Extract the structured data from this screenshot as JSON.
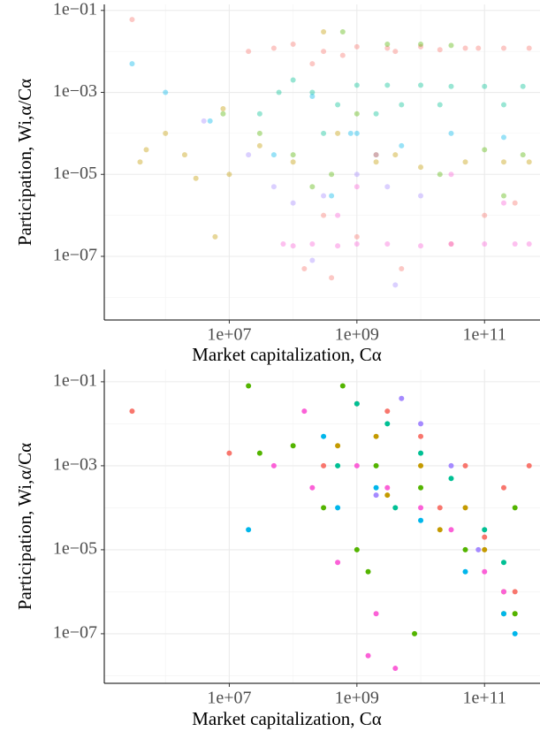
{
  "chart_data": [
    {
      "type": "scatter",
      "x_label": "Market capitalization, Cα",
      "y_label": "Participation, Wi,α/Cα",
      "log_x": true,
      "log_y": true,
      "grid": true,
      "alpha": 0.4,
      "xlim": [
        110000,
        740000000000
      ],
      "ylim": [
        2.8e-09,
        0.14
      ],
      "xticks": [
        {
          "value": 10000000,
          "label": "1e+07"
        },
        {
          "value": 1000000000,
          "label": "1e+09"
        },
        {
          "value": 100000000000,
          "label": "1e+11"
        }
      ],
      "xminor": [
        1000000,
        100000000,
        10000000000
      ],
      "yticks": [
        {
          "value": 0.1,
          "label": "1e−01"
        },
        {
          "value": 0.001,
          "label": "1e−03"
        },
        {
          "value": 1e-05,
          "label": "1e−05"
        },
        {
          "value": 1e-07,
          "label": "1e−07"
        }
      ],
      "yminor": [
        0.01,
        0.0001,
        1e-06,
        1e-08
      ],
      "series": [
        {
          "color": "#F8766D",
          "x": [
            300000.0,
            20000000.0,
            50000000.0,
            100000000.0,
            300000000.0,
            1000000000.0,
            3000000000.0,
            10000000000.0,
            50000000000.0,
            200000000000.0,
            500000000000.0,
            200000000.0,
            600000000.0,
            4000000000.0,
            20000000000.0,
            80000000000.0,
            300000000.0,
            1000000000.0,
            5000000000.0,
            30000000000.0,
            100000000000.0,
            300000000000.0,
            150000000.0,
            400000000.0
          ],
          "y": [
            0.06,
            0.01,
            0.012,
            0.015,
            0.01,
            0.013,
            0.012,
            0.013,
            0.012,
            0.012,
            0.012,
            0.005,
            0.008,
            0.01,
            0.011,
            0.012,
            1e-06,
            3e-07,
            5e-08,
            2e-07,
            1e-06,
            2e-06,
            5e-08,
            3e-08
          ]
        },
        {
          "color": "#C49A00",
          "x": [
            400000.0,
            500000.0,
            1000000.0,
            2000000.0,
            3000000.0,
            6000000.0,
            10000000.0,
            30000000.0,
            100000000.0,
            500000000.0,
            2000000000.0,
            10000000000.0,
            50000000000.0,
            200000000000.0,
            500000000000.0,
            8000000.0,
            300000000.0,
            4000000000.0
          ],
          "y": [
            2e-05,
            4e-05,
            0.0001,
            3e-05,
            8e-06,
            3e-07,
            1e-05,
            5e-05,
            2e-05,
            0.0001,
            2e-05,
            1.5e-05,
            2e-05,
            2e-05,
            2e-05,
            0.0004,
            0.03,
            3e-05
          ]
        },
        {
          "color": "#53B400",
          "x": [
            8000000.0,
            30000000.0,
            100000000.0,
            400000000.0,
            1000000000.0,
            3000000000.0,
            10000000000.0,
            30000000000.0,
            100000000000.0,
            400000000000.0,
            200000000.0,
            2000000000.0,
            20000000000.0,
            200000000000.0,
            600000000.0
          ],
          "y": [
            0.0003,
            0.0001,
            3e-05,
            1e-05,
            0.0003,
            0.015,
            0.015,
            0.014,
            4e-05,
            3e-05,
            5e-06,
            3e-05,
            1e-05,
            3e-06,
            0.03
          ]
        },
        {
          "color": "#00C094",
          "x": [
            30000000.0,
            60000000.0,
            100000000.0,
            200000000.0,
            500000000.0,
            1000000000.0,
            3000000000.0,
            10000000000.0,
            30000000000.0,
            100000000000.0,
            400000000000.0,
            300000000.0,
            2000000000.0,
            5000000000.0,
            20000000000.0,
            200000000000.0
          ],
          "y": [
            0.0003,
            0.001,
            0.002,
            0.001,
            0.0005,
            0.0015,
            0.0015,
            0.0015,
            0.0014,
            0.0014,
            0.0014,
            0.0001,
            0.0003,
            0.0005,
            0.0005,
            0.0005
          ]
        },
        {
          "color": "#00B6EB",
          "x": [
            300000.0,
            1000000.0,
            5000000.0,
            50000000.0,
            200000000.0,
            1000000000.0,
            5000000000.0,
            30000000000.0,
            200000000000.0,
            400000000.0,
            800000000.0
          ],
          "y": [
            0.005,
            0.001,
            0.0002,
            3e-05,
            0.0008,
            0.0001,
            5e-05,
            0.0001,
            8e-05,
            3e-06,
            0.0001
          ]
        },
        {
          "color": "#A58AFF",
          "x": [
            4000000.0,
            20000000.0,
            50000000.0,
            100000000.0,
            300000000.0,
            1000000000.0,
            3000000000.0,
            10000000000.0,
            4000000000.0,
            200000000.0
          ],
          "y": [
            0.0002,
            3e-05,
            5e-06,
            2e-06,
            3e-06,
            1e-05,
            5e-06,
            3e-06,
            2e-08,
            8e-08
          ]
        },
        {
          "color": "#FB61D7",
          "x": [
            70000000.0,
            100000000.0,
            200000000.0,
            500000000.0,
            1000000000.0,
            3000000000.0,
            10000000000.0,
            30000000000.0,
            100000000000.0,
            300000000000.0,
            500000000000.0,
            1000000000.0,
            500000000.0,
            2000000000.0,
            30000000000.0,
            200000000000.0
          ],
          "y": [
            2e-07,
            1.8e-07,
            2e-07,
            1.8e-07,
            2e-07,
            2e-07,
            1.8e-07,
            2e-07,
            2e-07,
            2e-07,
            2e-07,
            5e-06,
            1e-06,
            3e-05,
            1e-05,
            2e-06
          ]
        }
      ]
    },
    {
      "type": "scatter",
      "x_label": "Market capitalization, Cα",
      "y_label": "Participation, Wi,α/Cα",
      "log_x": true,
      "log_y": true,
      "grid": true,
      "alpha": 1,
      "xlim": [
        110000,
        740000000000
      ],
      "ylim": [
        6.6e-09,
        0.196
      ],
      "xticks": [
        {
          "value": 10000000,
          "label": "1e+07"
        },
        {
          "value": 1000000000,
          "label": "1e+09"
        },
        {
          "value": 100000000000,
          "label": "1e+11"
        }
      ],
      "xminor": [
        1000000,
        100000000,
        10000000000
      ],
      "yticks": [
        {
          "value": 0.1,
          "label": "1e−01"
        },
        {
          "value": 0.001,
          "label": "1e−03"
        },
        {
          "value": 1e-05,
          "label": "1e−05"
        },
        {
          "value": 1e-07,
          "label": "1e−07"
        }
      ],
      "yminor": [
        0.01,
        0.0001,
        1e-06,
        1e-08
      ],
      "series": [
        {
          "color": "#F8766D",
          "x": [
            300000.0,
            10000000.0,
            1000000000.0,
            3000000000.0,
            10000000000.0,
            50000000000.0,
            200000000000.0,
            500000000000.0,
            300000000.0,
            20000000000.0,
            100000000000.0,
            300000000000.0
          ],
          "y": [
            0.02,
            0.002,
            0.03,
            0.02,
            0.005,
            0.001,
            0.0003,
            0.001,
            0.001,
            0.0001,
            2e-05,
            1e-06
          ]
        },
        {
          "color": "#C49A00",
          "x": [
            500000000.0,
            2000000000.0,
            10000000000.0,
            50000000000.0,
            100000000000.0,
            200000000000.0,
            300000000000.0,
            3000000000.0,
            20000000000.0
          ],
          "y": [
            0.003,
            0.005,
            0.001,
            0.0001,
            1e-05,
            1e-06,
            3e-07,
            0.0002,
            3e-05
          ]
        },
        {
          "color": "#53B400",
          "x": [
            20000000.0,
            30000000.0,
            100000000.0,
            600000000.0,
            2000000000.0,
            10000000000.0,
            50000000000.0,
            200000000000.0,
            300000000000.0,
            300000000.0,
            1000000000.0,
            1500000000.0,
            8000000000.0,
            300000000000.0
          ],
          "y": [
            0.08,
            0.002,
            0.003,
            0.08,
            0.001,
            0.0003,
            1e-05,
            3e-07,
            3e-07,
            0.0001,
            1e-05,
            3e-06,
            1e-07,
            0.0001
          ]
        },
        {
          "color": "#00C094",
          "x": [
            1000000000.0,
            3000000000.0,
            10000000000.0,
            30000000000.0,
            100000000000.0,
            200000000000.0,
            500000000.0,
            4000000000.0
          ],
          "y": [
            0.03,
            0.01,
            0.002,
            0.0005,
            3e-05,
            5e-06,
            0.001,
            0.0001
          ]
        },
        {
          "color": "#00B6EB",
          "x": [
            20000000.0,
            500000000.0,
            2000000000.0,
            10000000000.0,
            50000000000.0,
            200000000000.0,
            300000000000.0,
            300000000.0
          ],
          "y": [
            3e-05,
            0.0001,
            0.0003,
            5e-05,
            3e-06,
            3e-07,
            1e-07,
            0.005
          ]
        },
        {
          "color": "#A58AFF",
          "x": [
            5000000000.0,
            10000000000.0,
            30000000000.0,
            2000000000.0,
            80000000000.0
          ],
          "y": [
            0.04,
            0.01,
            0.001,
            0.0002,
            1e-05
          ]
        },
        {
          "color": "#FB61D7",
          "x": [
            50000000.0,
            200000000.0,
            1000000000.0,
            3000000000.0,
            10000000000.0,
            30000000000.0,
            100000000000.0,
            200000000000.0,
            150000000.0,
            2000000000.0,
            4000000000.0,
            500000000.0,
            1500000000.0
          ],
          "y": [
            0.001,
            0.0003,
            0.001,
            0.0003,
            0.0001,
            3e-05,
            3e-06,
            1e-06,
            0.02,
            3e-07,
            1.5e-08,
            5e-06,
            3e-08
          ]
        }
      ]
    }
  ]
}
